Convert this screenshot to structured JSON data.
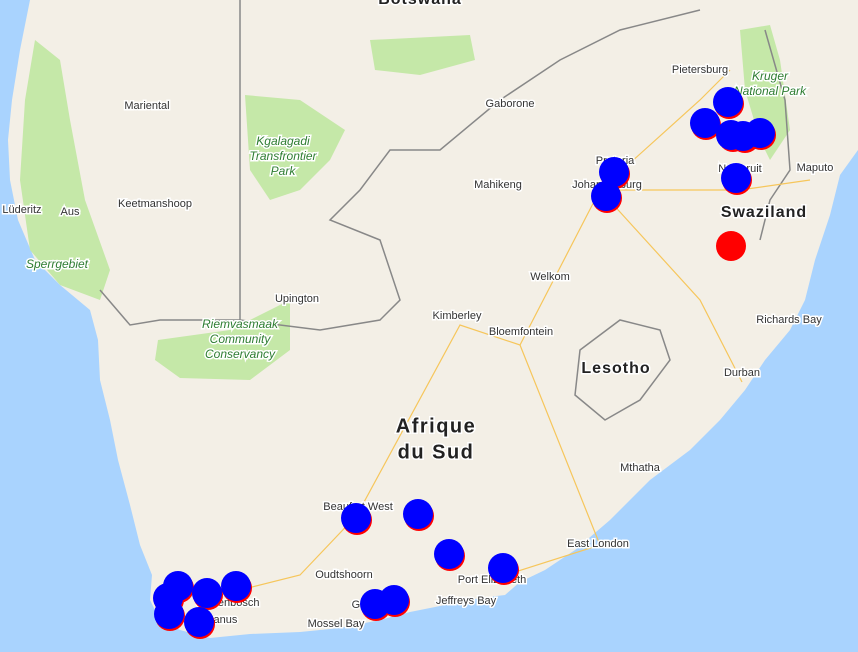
{
  "country_label": [
    "Afrique",
    "du Sud"
  ],
  "region_labels": {
    "botswana": "Botswana",
    "swaziland": "Swaziland",
    "lesotho": "Lesotho"
  },
  "park_labels": {
    "kruger": [
      "Kruger",
      "National Park"
    ],
    "kgalagadi": [
      "Kgalagadi",
      "Transfrontier",
      "Park"
    ],
    "sperrgebiet": "Sperrgebiet",
    "riemvasmaak": [
      "Riemvasmaak",
      "Community",
      "Conservancy"
    ]
  },
  "cities": [
    "Pietersburg",
    "Mariental",
    "Gaborone",
    "Pretoria",
    "Johannesburg",
    "Mahikeng",
    "Maputo",
    "Nelspruit",
    "Lüderitz",
    "Aus",
    "Keetmanshoop",
    "Welkom",
    "Upington",
    "Richards Bay",
    "Kimberley",
    "Bloemfontein",
    "Durban",
    "Mthatha",
    "Beaufort West",
    "East London",
    "Oudtshoorn",
    "Port Elizabeth",
    "Jeffreys Bay",
    "George",
    "Mossel Bay",
    "Stellenbosch",
    "Hermanus"
  ]
}
